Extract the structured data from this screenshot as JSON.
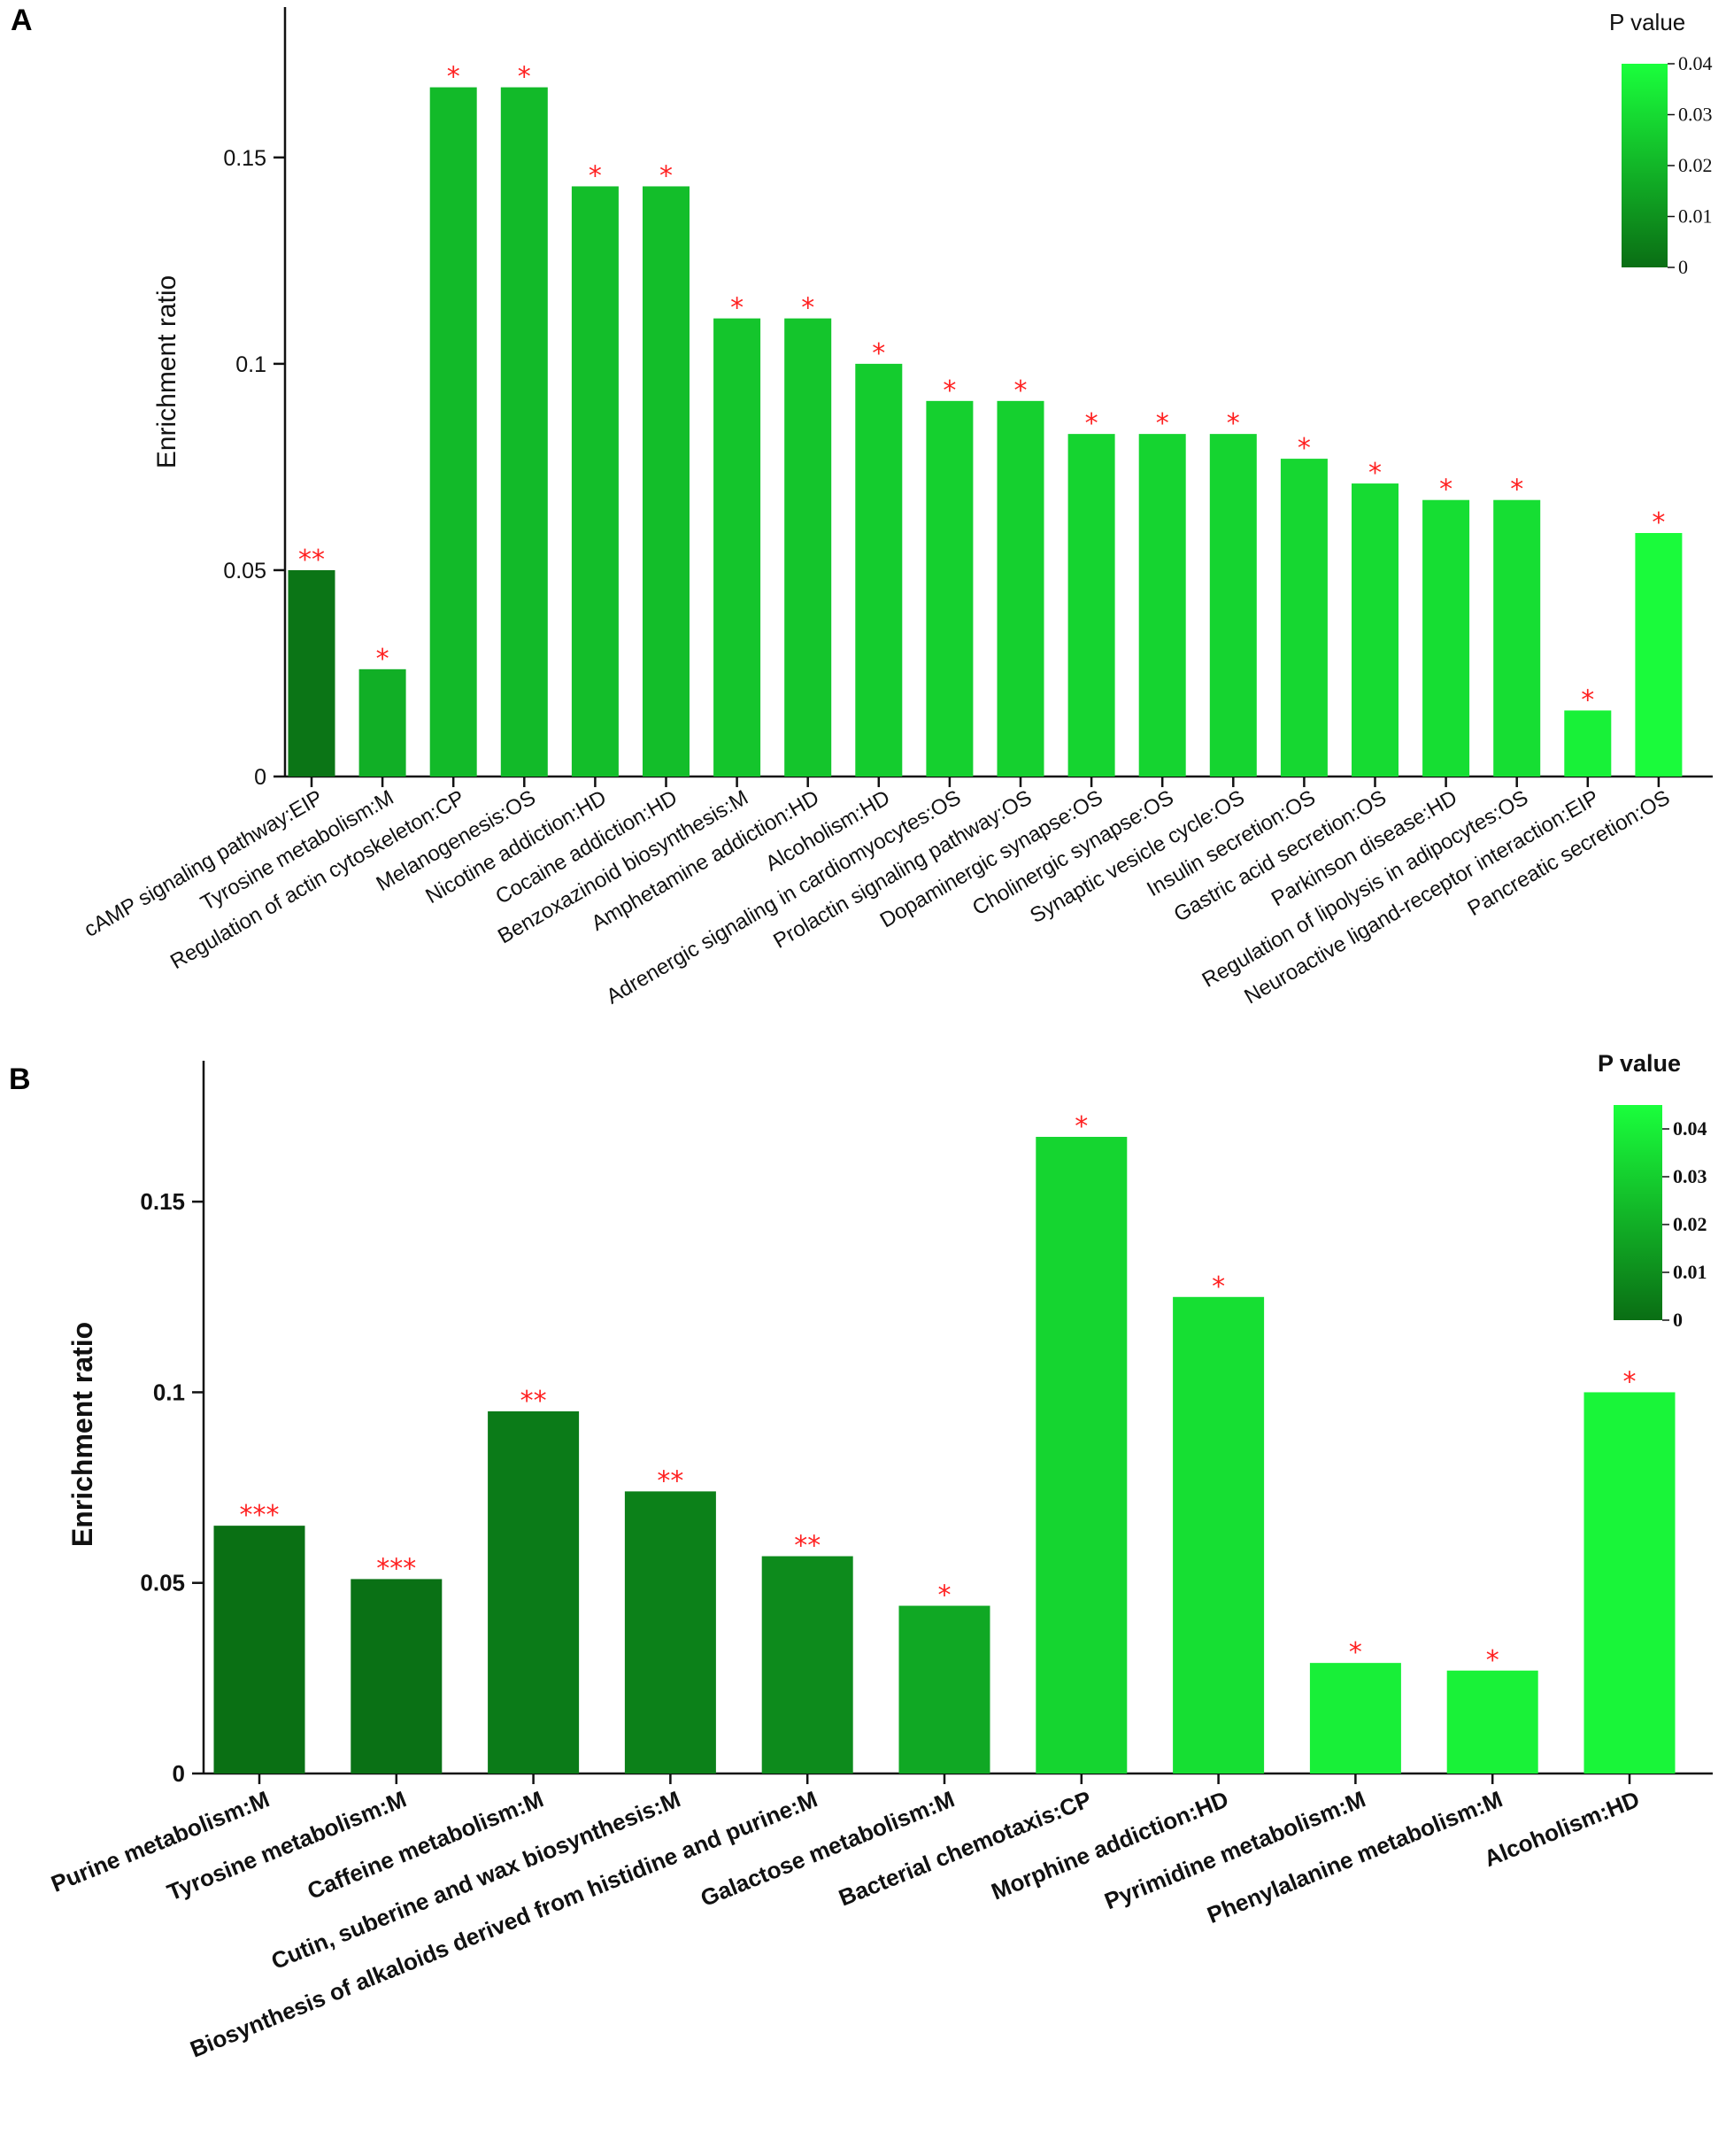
{
  "chart_data": [
    {
      "panel": "A",
      "type": "bar",
      "ylabel": "Enrichment ratio",
      "ylim": [
        0,
        0.18
      ],
      "yticks": [
        "0",
        "0.05",
        "0.1",
        "0.15"
      ],
      "categories": [
        "cAMP signaling pathway:EIP",
        "Tyrosine metabolism:M",
        "Regulation of actin cytoskeleton:CP",
        "Melanogenesis:OS",
        "Nicotine addiction:HD",
        "Cocaine addiction:HD",
        "Benzoxazinoid biosynthesis:M",
        "Amphetamine addiction:HD",
        "Alcoholism:HD",
        "Adrenergic signaling in cardiomyocytes:OS",
        "Prolactin signaling pathway:OS",
        "Dopaminergic synapse:OS",
        "Cholinergic synapse:OS",
        "Synaptic vesicle cycle:OS",
        "Insulin secretion:OS",
        "Gastric acid secretion:OS",
        "Parkinson disease:HD",
        "Regulation of lipolysis in adipocytes:OS",
        "Neuroactive ligand-receptor interaction:EIP",
        "Pancreatic secretion:OS"
      ],
      "values": [
        0.05,
        0.026,
        0.167,
        0.167,
        0.143,
        0.143,
        0.111,
        0.111,
        0.1,
        0.091,
        0.091,
        0.083,
        0.083,
        0.083,
        0.077,
        0.071,
        0.067,
        0.067,
        0.016,
        0.059
      ],
      "pvalues": [
        0.002,
        0.018,
        0.021,
        0.021,
        0.022,
        0.022,
        0.024,
        0.024,
        0.026,
        0.027,
        0.027,
        0.028,
        0.028,
        0.028,
        0.029,
        0.03,
        0.031,
        0.031,
        0.036,
        0.039
      ],
      "significance": [
        "**",
        "*",
        "*",
        "*",
        "*",
        "*",
        "*",
        "*",
        "*",
        "*",
        "*",
        "*",
        "*",
        "*",
        "*",
        "*",
        "*",
        "*",
        "*",
        "*"
      ],
      "colorbar": {
        "title": "P value",
        "range": [
          0,
          0.04
        ],
        "ticks": [
          "0",
          "0.01",
          "0.02",
          "0.03",
          "0.04"
        ],
        "color_low": "#0a6e14",
        "color_high": "#1aff3c"
      }
    },
    {
      "panel": "B",
      "type": "bar",
      "ylabel": "Enrichment ratio",
      "ylim": [
        0,
        0.18
      ],
      "yticks": [
        "0",
        "0.05",
        "0.1",
        "0.15"
      ],
      "categories": [
        "Purine metabolism:M",
        "Tyrosine metabolism:M",
        "Caffeine metabolism:M",
        "Cutin, suberine and wax biosynthesis:M",
        "Biosynthesis of alkaloids derived from histidine and purine:M",
        "Galactose metabolism:M",
        "Bacterial chemotaxis:CP",
        "Morphine addiction:HD",
        "Pyrimidine metabolism:M",
        "Phenylalanine metabolism:M",
        "Alcoholism:HD"
      ],
      "values": [
        0.065,
        0.051,
        0.095,
        0.074,
        0.057,
        0.044,
        0.167,
        0.125,
        0.029,
        0.027,
        0.1
      ],
      "pvalues": [
        0.0005,
        0.0008,
        0.004,
        0.006,
        0.009,
        0.018,
        0.032,
        0.035,
        0.04,
        0.041,
        0.042
      ],
      "significance": [
        "***",
        "***",
        "**",
        "**",
        "**",
        "*",
        "*",
        "*",
        "*",
        "*",
        "*"
      ],
      "colorbar": {
        "title": "P value",
        "range": [
          0,
          0.045
        ],
        "ticks": [
          "0",
          "0.01",
          "0.02",
          "0.03",
          "0.04"
        ],
        "color_low": "#0a6e14",
        "color_high": "#1aff3c"
      }
    }
  ]
}
